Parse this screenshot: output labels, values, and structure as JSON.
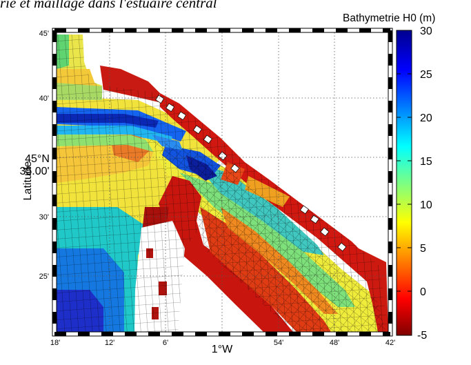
{
  "header": {
    "title_fragment": "rie et maillage dans l'estuaire central"
  },
  "colorbar": {
    "title": "Bathymetrie H0 (m)",
    "range": [
      -5,
      30
    ],
    "ticks": [
      "30",
      "25",
      "20",
      "15",
      "10",
      "5",
      "0",
      "-5"
    ],
    "colormap": "jet"
  },
  "map": {
    "y_label": "Latitude",
    "y_center_label_line1": "45°N",
    "y_center_label_line2": "35.00'",
    "x_center_label": "1°W",
    "x_ticks": [
      "18'",
      "12'",
      "6'",
      "",
      "54'",
      "48'",
      "42'"
    ],
    "y_ticks": [
      "45'",
      "40'",
      "",
      "30'",
      "25'"
    ],
    "grid": true,
    "frame": "dashed-border"
  },
  "colors": {
    "land": "#ffffff",
    "grid_line": "#000000",
    "shallow": "#8b0000",
    "deep": "#00008f"
  }
}
